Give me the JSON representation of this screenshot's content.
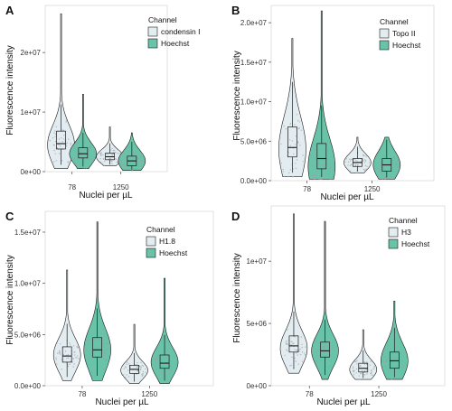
{
  "colors": {
    "target_fill": "#e3edf1",
    "hoechst_fill": "#68c3a8",
    "outline": "#1a1a1a",
    "jitter": "#9aa0a6"
  },
  "chart_data": [
    {
      "panel": "A",
      "type": "violin",
      "xlabel": "Nuclei per µL",
      "ylabel": "Fluorescence intensity",
      "categories": [
        "78",
        "1250"
      ],
      "ylim": [
        0,
        27000000
      ],
      "yticks": [
        0,
        10000000,
        20000000
      ],
      "ytick_labels": [
        "0e+00",
        "1e+07",
        "2e+07"
      ],
      "legend_title": "Channel",
      "series": [
        {
          "name": "condensin I",
          "stats": [
            {
              "category": "78",
              "min": 500000,
              "q1": 3800000,
              "median": 4700000,
              "q3": 6800000,
              "max": 26500000,
              "mode": 4500000
            },
            {
              "category": "1250",
              "min": 1000000,
              "q1": 2000000,
              "median": 2500000,
              "q3": 3100000,
              "max": 7500000,
              "mode": 2500000
            }
          ]
        },
        {
          "name": "Hoechst",
          "stats": [
            {
              "category": "78",
              "min": 500000,
              "q1": 2300000,
              "median": 3000000,
              "q3": 4000000,
              "max": 13000000,
              "mode": 3000000
            },
            {
              "category": "1250",
              "min": 200000,
              "q1": 1000000,
              "median": 1800000,
              "q3": 2600000,
              "max": 6500000,
              "mode": 1800000
            }
          ]
        }
      ]
    },
    {
      "panel": "B",
      "type": "violin",
      "xlabel": "Nuclei per µL",
      "ylabel": "Fluorescence intensity",
      "categories": [
        "78",
        "1250"
      ],
      "ylim": [
        0,
        21500000
      ],
      "yticks": [
        0,
        5000000,
        10000000,
        15000000,
        20000000
      ],
      "ytick_labels": [
        "0.0e+00",
        "5.0e+06",
        "1.0e+07",
        "1.5e+07",
        "2.0e+07"
      ],
      "legend_title": "Channel",
      "series": [
        {
          "name": "Topo II",
          "stats": [
            {
              "category": "78",
              "min": 500000,
              "q1": 3000000,
              "median": 4200000,
              "q3": 6800000,
              "max": 18000000,
              "mode": 4000000
            },
            {
              "category": "1250",
              "min": 1000000,
              "q1": 1800000,
              "median": 2300000,
              "q3": 2800000,
              "max": 5500000,
              "mode": 2300000
            }
          ]
        },
        {
          "name": "Hoechst",
          "stats": [
            {
              "category": "78",
              "min": 200000,
              "q1": 1500000,
              "median": 2800000,
              "q3": 4700000,
              "max": 21500000,
              "mode": 1800000
            },
            {
              "category": "1250",
              "min": 200000,
              "q1": 1200000,
              "median": 2000000,
              "q3": 2800000,
              "max": 5500000,
              "mode": 2000000
            }
          ]
        }
      ]
    },
    {
      "panel": "C",
      "type": "violin",
      "xlabel": "Nuclei per µL",
      "ylabel": "Fluorescence intensity",
      "categories": [
        "78",
        "1250"
      ],
      "ylim": [
        0,
        16500000
      ],
      "yticks": [
        0,
        5000000,
        10000000,
        15000000
      ],
      "ytick_labels": [
        "0.0e+00",
        "5.0e+06",
        "1.0e+07",
        "1.5e+07"
      ],
      "legend_title": "Channel",
      "series": [
        {
          "name": "H1.8",
          "stats": [
            {
              "category": "78",
              "min": 500000,
              "q1": 2300000,
              "median": 2900000,
              "q3": 3800000,
              "max": 11300000,
              "mode": 3000000
            },
            {
              "category": "1250",
              "min": 200000,
              "q1": 1200000,
              "median": 1600000,
              "q3": 2000000,
              "max": 6000000,
              "mode": 1500000
            }
          ]
        },
        {
          "name": "Hoechst",
          "stats": [
            {
              "category": "78",
              "min": 500000,
              "q1": 2800000,
              "median": 3500000,
              "q3": 4700000,
              "max": 16000000,
              "mode": 3500000
            },
            {
              "category": "1250",
              "min": 200000,
              "q1": 1700000,
              "median": 2200000,
              "q3": 3000000,
              "max": 10500000,
              "mode": 2300000
            }
          ]
        }
      ]
    },
    {
      "panel": "D",
      "type": "violin",
      "xlabel": "Nuclei per µL",
      "ylabel": "Fluorescence intensity",
      "categories": [
        "78",
        "1250"
      ],
      "ylim": [
        0,
        14000000
      ],
      "yticks": [
        0,
        5000000,
        10000000
      ],
      "ytick_labels": [
        "0e+00",
        "5e+06",
        "1e+07"
      ],
      "legend_title": "Channel",
      "series": [
        {
          "name": "H3",
          "stats": [
            {
              "category": "78",
              "min": 1000000,
              "q1": 2700000,
              "median": 3200000,
              "q3": 4000000,
              "max": 13800000,
              "mode": 3000000
            },
            {
              "category": "1250",
              "min": 500000,
              "q1": 1100000,
              "median": 1400000,
              "q3": 1800000,
              "max": 4500000,
              "mode": 1300000
            }
          ]
        },
        {
          "name": "Hoechst",
          "stats": [
            {
              "category": "78",
              "min": 500000,
              "q1": 2300000,
              "median": 2800000,
              "q3": 3500000,
              "max": 13200000,
              "mode": 2800000
            },
            {
              "category": "1250",
              "min": 500000,
              "q1": 1400000,
              "median": 2000000,
              "q3": 2700000,
              "max": 6800000,
              "mode": 2000000
            }
          ]
        }
      ]
    }
  ]
}
